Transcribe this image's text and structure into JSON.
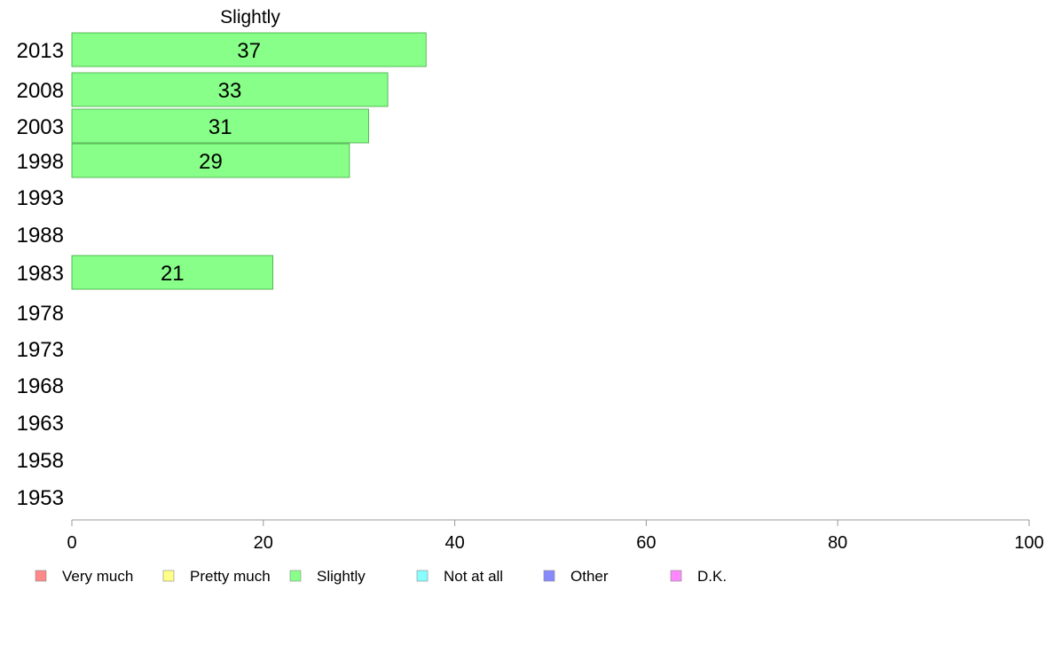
{
  "chart_data": {
    "type": "bar",
    "orientation": "horizontal",
    "title": "Slightly",
    "categories": [
      "2013",
      "2008",
      "2003",
      "1998",
      "1993",
      "1988",
      "1983",
      "1978",
      "1973",
      "1968",
      "1963",
      "1958",
      "1953"
    ],
    "series": [
      {
        "name": "Slightly",
        "color": "#88ff88",
        "values": [
          37,
          33,
          31,
          29,
          null,
          null,
          21,
          null,
          null,
          null,
          null,
          null,
          null
        ],
        "labels": [
          "37",
          "33",
          "31",
          "29",
          "",
          "",
          "21",
          "",
          "",
          "",
          "",
          "",
          ""
        ]
      }
    ],
    "xlim": [
      0,
      100
    ],
    "xticks": [
      "0",
      "20",
      "40",
      "60",
      "80",
      "100"
    ],
    "grid": false,
    "legend": {
      "position": "bottom",
      "items": [
        {
          "label": "Very much",
          "color": "#ff8888"
        },
        {
          "label": "Pretty much",
          "color": "#ffff88"
        },
        {
          "label": "Slightly",
          "color": "#88ff88"
        },
        {
          "label": "Not at all",
          "color": "#88ffff"
        },
        {
          "label": "Other",
          "color": "#8888ff"
        },
        {
          "label": "D.K.",
          "color": "#ff88ff"
        }
      ]
    }
  }
}
